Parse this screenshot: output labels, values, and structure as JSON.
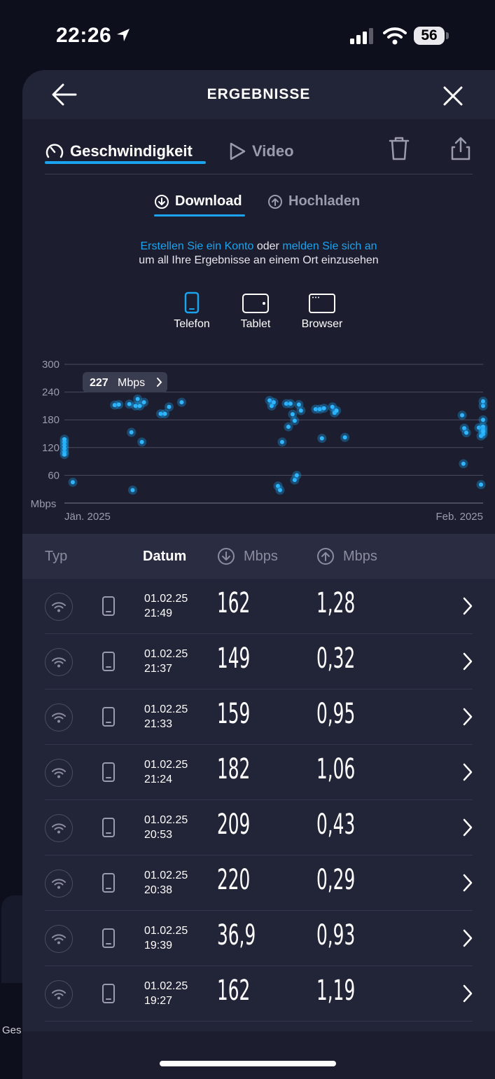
{
  "status_bar": {
    "time": "22:26",
    "battery": "56"
  },
  "background": {
    "partial_label": "Ges"
  },
  "header": {
    "title": "ERGEBNISSE"
  },
  "tabs": {
    "speed": "Geschwindigkeit",
    "video": "Video"
  },
  "sub_tabs": {
    "download": "Download",
    "upload": "Hochladen"
  },
  "notice": {
    "link1": "Erstellen Sie ein Konto",
    "or": "oder",
    "link2": "melden Sie sich an",
    "line2": "um all Ihre Ergebnisse an einem Ort einzusehen"
  },
  "devices": {
    "phone": "Telefon",
    "tablet": "Tablet",
    "browser": "Browser"
  },
  "chart_data": {
    "type": "scatter",
    "ylabel": "Mbps",
    "yticks": [
      60,
      120,
      180,
      240,
      300
    ],
    "ylim": [
      0,
      300
    ],
    "x_labels": [
      "Jän. 2025",
      "Feb. 2025"
    ],
    "tooltip": {
      "value": "227",
      "unit": "Mbps"
    },
    "points": [
      [
        0.0,
        110
      ],
      [
        0.0,
        118
      ],
      [
        0.0,
        125
      ],
      [
        0.0,
        132
      ],
      [
        0.0,
        105
      ],
      [
        0.0,
        138
      ],
      [
        0.02,
        45
      ],
      [
        0.12,
        212
      ],
      [
        0.13,
        213
      ],
      [
        0.155,
        214
      ],
      [
        0.16,
        153
      ],
      [
        0.163,
        28
      ],
      [
        0.17,
        210
      ],
      [
        0.175,
        225
      ],
      [
        0.18,
        210
      ],
      [
        0.185,
        132
      ],
      [
        0.19,
        218
      ],
      [
        0.23,
        193
      ],
      [
        0.24,
        193
      ],
      [
        0.25,
        208
      ],
      [
        0.28,
        218
      ],
      [
        0.49,
        222
      ],
      [
        0.495,
        210
      ],
      [
        0.5,
        218
      ],
      [
        0.51,
        37
      ],
      [
        0.515,
        28
      ],
      [
        0.52,
        132
      ],
      [
        0.53,
        215
      ],
      [
        0.535,
        165
      ],
      [
        0.54,
        215
      ],
      [
        0.545,
        192
      ],
      [
        0.55,
        50
      ],
      [
        0.55,
        178
      ],
      [
        0.555,
        60
      ],
      [
        0.56,
        213
      ],
      [
        0.565,
        200
      ],
      [
        0.6,
        203
      ],
      [
        0.61,
        203
      ],
      [
        0.615,
        140
      ],
      [
        0.62,
        205
      ],
      [
        0.64,
        208
      ],
      [
        0.645,
        195
      ],
      [
        0.65,
        200
      ],
      [
        0.67,
        142
      ],
      [
        0.95,
        190
      ],
      [
        0.953,
        85
      ],
      [
        0.955,
        162
      ],
      [
        0.96,
        152
      ],
      [
        0.995,
        40
      ],
      [
        0.99,
        163
      ],
      [
        0.995,
        145
      ],
      [
        1.0,
        210
      ],
      [
        1.0,
        220
      ],
      [
        1.0,
        180
      ],
      [
        1.0,
        160
      ],
      [
        1.0,
        149
      ],
      [
        1.0,
        165
      ],
      [
        1.0,
        155
      ]
    ]
  },
  "table": {
    "col_type": "Typ",
    "col_date": "Datum",
    "col_down": "Mbps",
    "col_up": "Mbps",
    "rows": [
      {
        "date": "01.02.25",
        "time": "21:49",
        "down": "162",
        "up": "1,28"
      },
      {
        "date": "01.02.25",
        "time": "21:37",
        "down": "149",
        "up": "0,32"
      },
      {
        "date": "01.02.25",
        "time": "21:33",
        "down": "159",
        "up": "0,95"
      },
      {
        "date": "01.02.25",
        "time": "21:24",
        "down": "182",
        "up": "1,06"
      },
      {
        "date": "01.02.25",
        "time": "20:53",
        "down": "209",
        "up": "0,43"
      },
      {
        "date": "01.02.25",
        "time": "20:38",
        "down": "220",
        "up": "0,29"
      },
      {
        "date": "01.02.25",
        "time": "19:39",
        "down": "36,9",
        "up": "0,93"
      },
      {
        "date": "01.02.25",
        "time": "19:27",
        "down": "162",
        "up": "1,19"
      }
    ]
  }
}
